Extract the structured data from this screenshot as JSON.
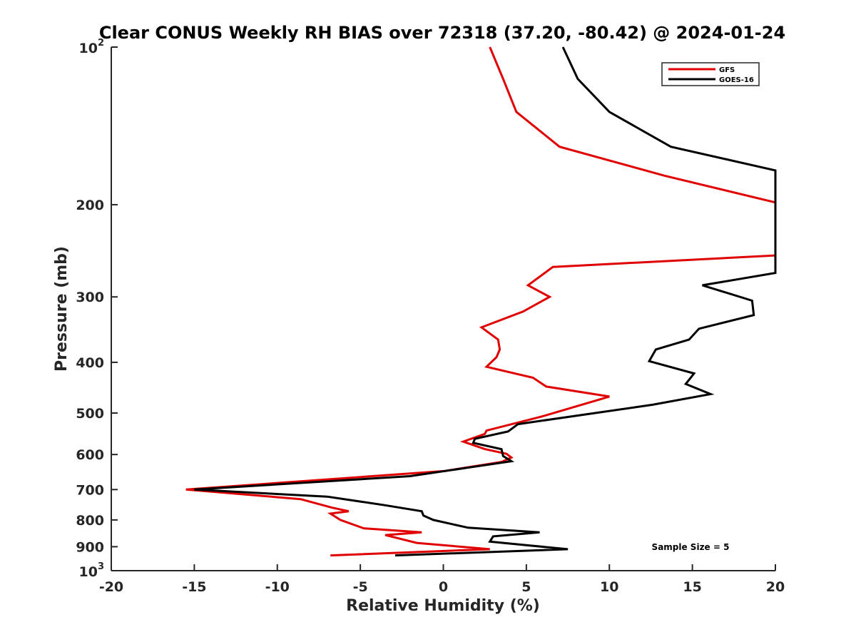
{
  "chart_data": {
    "type": "line",
    "title": "Clear CONUS Weekly RH BIAS over 72318 (37.20, -80.42) @ 2024-01-24",
    "xlabel": "Relative Humidity (%)",
    "ylabel": "Pressure (mb)",
    "xlim": [
      -20,
      20
    ],
    "ylim": [
      100,
      1000
    ],
    "y_scale": "log",
    "y_reversed": true,
    "grid": false,
    "legend_position": "top-right",
    "x_ticks": [
      -20,
      -15,
      -10,
      -5,
      0,
      5,
      10,
      15,
      20
    ],
    "x_tick_labels": [
      "-20",
      "-15",
      "-10",
      "-5",
      "0",
      "5",
      "10",
      "15",
      "20"
    ],
    "y_ticks": [
      200,
      300,
      400,
      500,
      600,
      700,
      800,
      900
    ],
    "y_tick_labels": [
      "200",
      "300",
      "400",
      "500",
      "600",
      "700",
      "800",
      "900"
    ],
    "y_decade_labels": [
      {
        "value": 100,
        "base": "10",
        "exp": "2"
      },
      {
        "value": 1000,
        "base": "10",
        "exp": "3"
      }
    ],
    "annotation": "Sample Size = 5",
    "series": [
      {
        "name": "GFS",
        "color": "#e00000",
        "points": [
          [
            2.8,
            100
          ],
          [
            3.6,
            115
          ],
          [
            4.4,
            133
          ],
          [
            7.0,
            155
          ],
          [
            13.3,
            176
          ],
          [
            20.0,
            198
          ],
          [
            20.0,
            250
          ],
          [
            6.6,
            263
          ],
          [
            5.1,
            285
          ],
          [
            6.4,
            300
          ],
          [
            4.8,
            320
          ],
          [
            2.3,
            343
          ],
          [
            3.3,
            362
          ],
          [
            3.4,
            378
          ],
          [
            3.2,
            391
          ],
          [
            2.6,
            408
          ],
          [
            5.4,
            428
          ],
          [
            6.2,
            445
          ],
          [
            10.0,
            465
          ],
          [
            5.9,
            508
          ],
          [
            2.6,
            540
          ],
          [
            2.5,
            548
          ],
          [
            1.2,
            567
          ],
          [
            2.5,
            586
          ],
          [
            3.8,
            598
          ],
          [
            4.1,
            608
          ],
          [
            3.5,
            620
          ],
          [
            0.1,
            645
          ],
          [
            -15.5,
            700
          ],
          [
            -8.6,
            730
          ],
          [
            -6.7,
            758
          ],
          [
            -5.7,
            770
          ],
          [
            -6.8,
            778
          ],
          [
            -6.2,
            800
          ],
          [
            -4.8,
            830
          ],
          [
            -1.3,
            845
          ],
          [
            -3.5,
            855
          ],
          [
            -1.6,
            885
          ],
          [
            2.8,
            910
          ],
          [
            -6.8,
            935
          ]
        ]
      },
      {
        "name": "GOES-16",
        "color": "#000000",
        "points": [
          [
            7.2,
            100
          ],
          [
            8.1,
            115
          ],
          [
            10.0,
            133
          ],
          [
            13.7,
            155
          ],
          [
            20.0,
            172
          ],
          [
            20.0,
            270
          ],
          [
            15.6,
            285
          ],
          [
            18.6,
            305
          ],
          [
            18.7,
            325
          ],
          [
            15.4,
            345
          ],
          [
            14.8,
            362
          ],
          [
            12.8,
            378
          ],
          [
            12.4,
            398
          ],
          [
            15.1,
            420
          ],
          [
            14.6,
            440
          ],
          [
            16.1,
            460
          ],
          [
            12.6,
            482
          ],
          [
            4.5,
            525
          ],
          [
            3.9,
            542
          ],
          [
            1.9,
            560
          ],
          [
            1.8,
            570
          ],
          [
            3.5,
            586
          ],
          [
            3.6,
            604
          ],
          [
            4.1,
            618
          ],
          [
            1.6,
            635
          ],
          [
            -2.0,
            660
          ],
          [
            -15.0,
            700
          ],
          [
            -7.0,
            722
          ],
          [
            -3.5,
            750
          ],
          [
            -1.3,
            770
          ],
          [
            -1.2,
            785
          ],
          [
            -0.6,
            800
          ],
          [
            1.5,
            828
          ],
          [
            5.8,
            845
          ],
          [
            3.0,
            860
          ],
          [
            2.8,
            880
          ],
          [
            7.5,
            910
          ],
          [
            -2.9,
            935
          ]
        ]
      }
    ]
  }
}
